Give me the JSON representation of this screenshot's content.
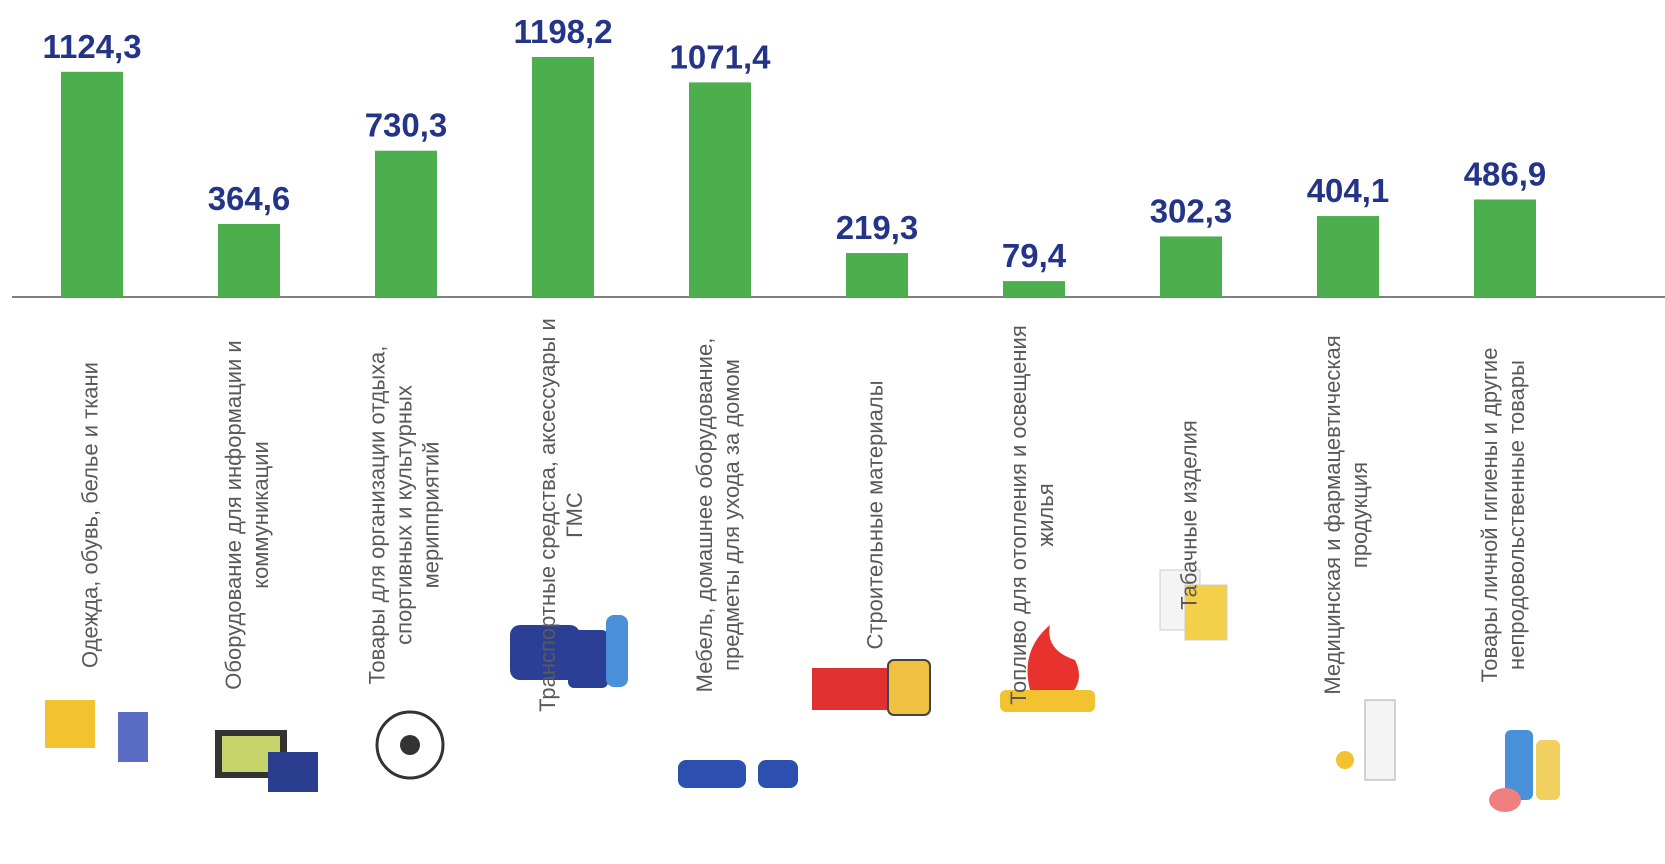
{
  "chart_data": {
    "type": "bar",
    "categories": [
      "Одежда, обувь, белье и ткани",
      "Оборудование для информации и коммуникации",
      "Товары для организации отдыха, спортивных и культурных мерипприятий",
      "Транспортные средства, аксессуары и ГМС",
      "Мебель, домашнее оборудование, предметы для ухода за домом",
      "Строительные материалы",
      "Топливо для отопления и освещения жилья",
      "Табачные изделия",
      "Медицинская и фармацевтическая продукция",
      "Товары личной гигиены и другие непродовольственные товары"
    ],
    "values": [
      1124.3,
      364.6,
      730.3,
      1198.2,
      1071.4,
      219.3,
      79.4,
      302.3,
      404.1,
      486.9
    ],
    "value_labels": [
      "1124,3",
      "364,6",
      "730,3",
      "1198,2",
      "1071,4",
      "219,3",
      "79,4",
      "302,3",
      "404,1",
      "486,9"
    ],
    "color": "#4cae4c"
  }
}
